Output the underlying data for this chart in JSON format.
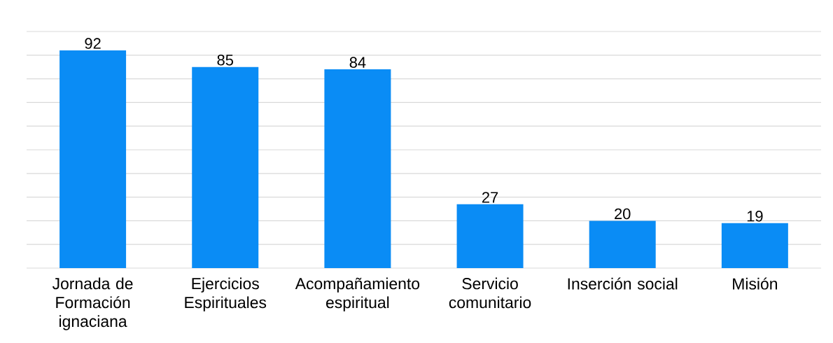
{
  "chart_data": {
    "type": "bar",
    "categories": [
      "Jornada de Formación ignaciana",
      "Ejercicios Espirituales",
      "Acompañamiento espiritual",
      "Servicio comunitario",
      "Inserción social",
      "Misión"
    ],
    "values": [
      92,
      85,
      84,
      27,
      20,
      19
    ],
    "color": "#0a8cf5",
    "ylim": [
      0,
      100
    ],
    "yticks": [
      {
        "value": 0,
        "label": null
      },
      {
        "value": 10,
        "label": null
      },
      {
        "value": 20,
        "label": null
      },
      {
        "value": 30,
        "label": null
      },
      {
        "value": 40,
        "label": null
      },
      {
        "value": 50,
        "label": null
      },
      {
        "value": 60,
        "label": null
      },
      {
        "value": 70,
        "label": null
      },
      {
        "value": 80,
        "label": null
      },
      {
        "value": 90,
        "label": null
      },
      {
        "value": 100,
        "label": null
      }
    ],
    "tick_labels": "x",
    "grid": "y",
    "data_labels": true
  }
}
